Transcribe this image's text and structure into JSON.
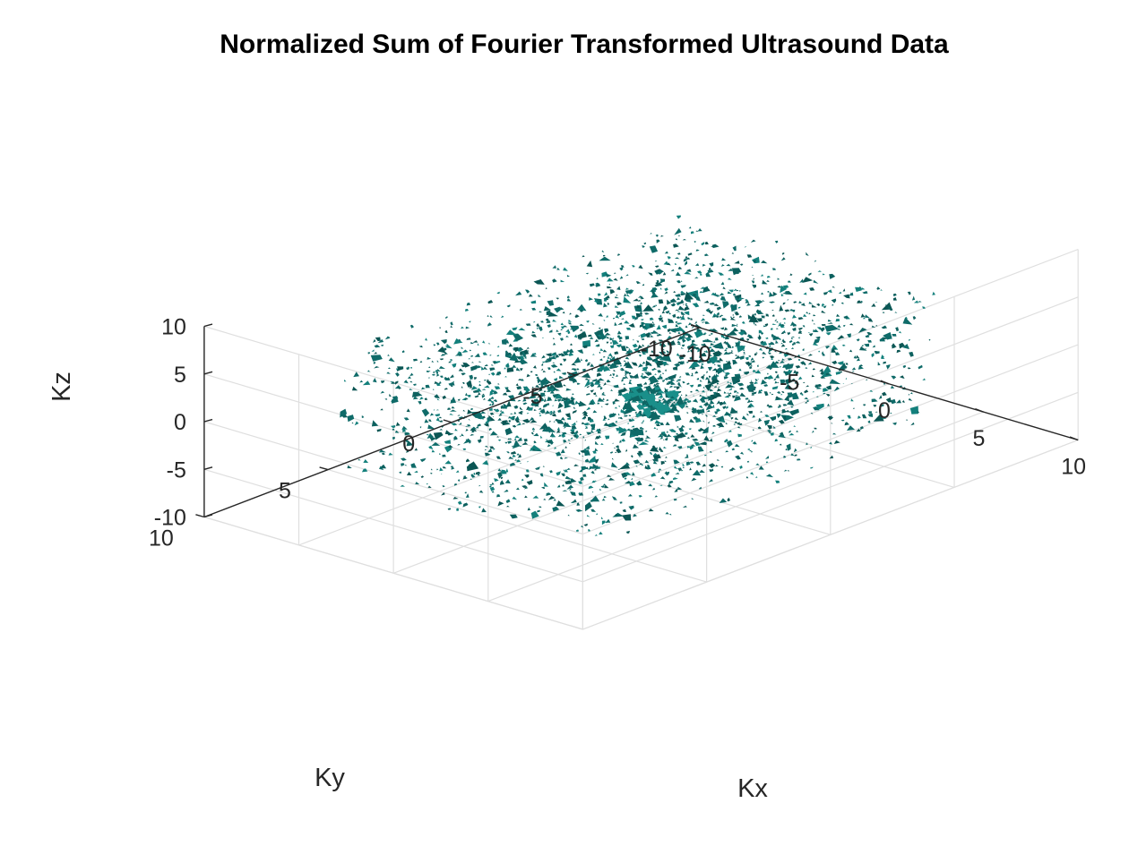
{
  "chart_data": {
    "type": "scatter",
    "title": "Normalized Sum of Fourier Transformed Ultrasound Data",
    "xlabel": "Kx",
    "ylabel": "Ky",
    "zlabel": "Kz",
    "xlim": [
      -10,
      10
    ],
    "ylim": [
      -10,
      10
    ],
    "zlim": [
      -10,
      10
    ],
    "x_ticks": [
      "-10",
      "-5",
      "0",
      "5",
      "10"
    ],
    "y_ticks": [
      "-10",
      "-5",
      "0",
      "5",
      "10"
    ],
    "z_ticks": [
      "-10",
      "-5",
      "0",
      "5",
      "10"
    ],
    "grid": true,
    "series": [
      {
        "kind": "isosurface-fragments",
        "color": "#0f6b69",
        "cloud_extent": {
          "x": [
            -7,
            7
          ],
          "y": [
            -7,
            7
          ],
          "z": [
            -7,
            7
          ]
        },
        "central_blob_center": [
          0,
          0,
          0
        ]
      }
    ]
  }
}
